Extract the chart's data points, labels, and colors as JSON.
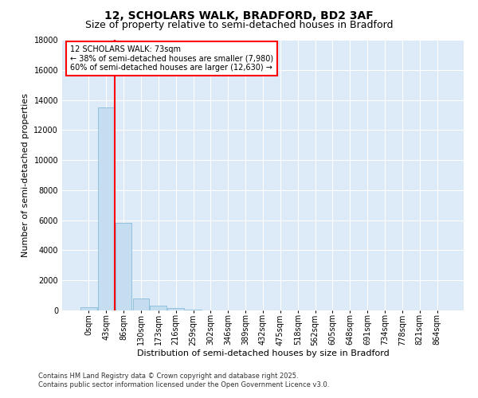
{
  "title_line1": "12, SCHOLARS WALK, BRADFORD, BD2 3AF",
  "title_line2": "Size of property relative to semi-detached houses in Bradford",
  "xlabel": "Distribution of semi-detached houses by size in Bradford",
  "ylabel": "Number of semi-detached properties",
  "annotation_title": "12 SCHOLARS WALK: 73sqm",
  "annotation_line2": "← 38% of semi-detached houses are smaller (7,980)",
  "annotation_line3": "60% of semi-detached houses are larger (12,630) →",
  "footer_line1": "Contains HM Land Registry data © Crown copyright and database right 2025.",
  "footer_line2": "Contains public sector information licensed under the Open Government Licence v3.0.",
  "categories": [
    "0sqm",
    "43sqm",
    "86sqm",
    "130sqm",
    "173sqm",
    "216sqm",
    "259sqm",
    "302sqm",
    "346sqm",
    "389sqm",
    "432sqm",
    "475sqm",
    "518sqm",
    "562sqm",
    "605sqm",
    "648sqm",
    "691sqm",
    "734sqm",
    "778sqm",
    "821sqm",
    "864sqm"
  ],
  "bar_values": [
    200,
    13500,
    5800,
    800,
    300,
    150,
    50,
    5,
    0,
    0,
    0,
    0,
    0,
    0,
    0,
    0,
    0,
    0,
    0,
    0,
    0
  ],
  "bar_color": "#c5ddf0",
  "bar_edge_color": "#7bb4d4",
  "marker_color": "red",
  "ylim": [
    0,
    18000
  ],
  "yticks": [
    0,
    2000,
    4000,
    6000,
    8000,
    10000,
    12000,
    14000,
    16000,
    18000
  ],
  "background_color": "#ddeaf7",
  "grid_color": "#ffffff",
  "annotation_box_color": "white",
  "annotation_box_edge": "red",
  "title_fontsize": 10,
  "subtitle_fontsize": 9,
  "ylabel_fontsize": 8,
  "xlabel_fontsize": 8,
  "tick_fontsize": 7,
  "annotation_fontsize": 7,
  "footer_fontsize": 6
}
